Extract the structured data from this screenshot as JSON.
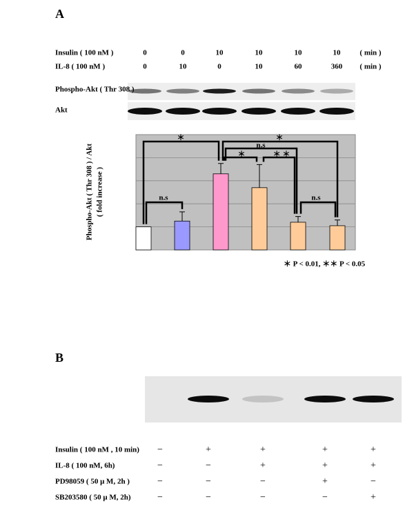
{
  "panel_a": {
    "label": "A",
    "conditions": [
      {
        "name": "Insulin ( 100 nM )",
        "values": [
          0,
          0,
          10,
          10,
          10,
          10
        ],
        "unit": "( min )"
      },
      {
        "name": "IL-8 ( 100 nM )",
        "values": [
          0,
          10,
          0,
          10,
          60,
          360
        ],
        "unit": "( min )"
      }
    ],
    "blots": [
      "Phospho-Akt ( Thr 308 )",
      "Akt"
    ],
    "footnote": "＊ P < 0.01, ＊＊ P < 0.05"
  },
  "chart_data": {
    "type": "bar",
    "y_label": [
      "Phospho-Akt ( Thr 308 ) / Akt",
      "( fold increase )"
    ],
    "values": [
      1.0,
      1.25,
      3.3,
      2.7,
      1.2,
      1.05
    ],
    "errors": [
      0,
      0.4,
      0.45,
      1.0,
      0.25,
      0.25
    ],
    "colors": [
      "#ffffff",
      "#9999ff",
      "#ff99cc",
      "#ffcc99",
      "#ffcc99",
      "#ffcc99"
    ],
    "ylim": [
      0,
      5
    ],
    "yticks": [
      1,
      2,
      3,
      4
    ],
    "grid": true,
    "annotations": [
      "＊",
      "n.s",
      "＊",
      "n.s",
      "＊",
      "＊ ＊",
      "n.s"
    ]
  },
  "panel_b": {
    "label": "B",
    "rows": [
      {
        "name": "Insulin ( 100 nM , 10 min)",
        "values": [
          "−",
          "+",
          "+",
          "+",
          "+"
        ]
      },
      {
        "name": "IL-8 ( 100 nM, 6h)",
        "values": [
          "−",
          "−",
          "+",
          "+",
          "+"
        ]
      },
      {
        "name": "PD98059 ( 50 μ M, 2h )",
        "values": [
          "−",
          "−",
          "−",
          "+",
          "−"
        ]
      },
      {
        "name": "SB203580 ( 50 μ M, 2h)",
        "values": [
          "−",
          "−",
          "−",
          "−",
          "+"
        ]
      }
    ]
  }
}
